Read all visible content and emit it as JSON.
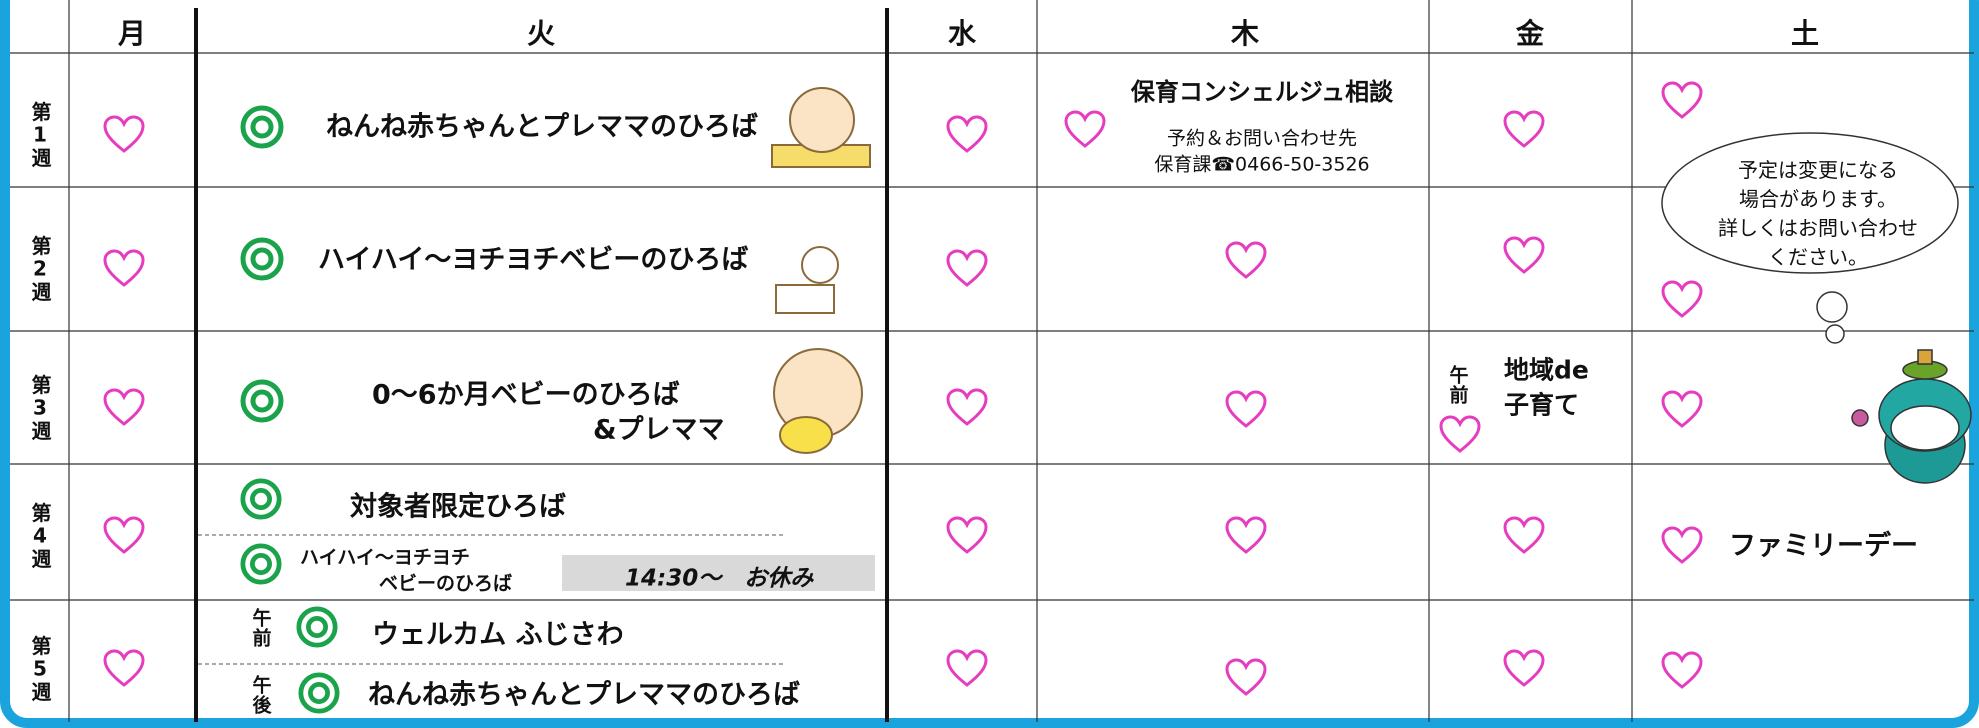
{
  "header": {
    "days": [
      "月",
      "火",
      "水",
      "木",
      "金",
      "土"
    ]
  },
  "weeks": [
    "第1週",
    "第2週",
    "第3週",
    "第4週",
    "第5週"
  ],
  "tue": {
    "w1": "ねんね赤ちゃんとプレママのひろば",
    "w2": "ハイハイ～ヨチヨチベビーのひろば",
    "w3": [
      "0～6か月ベビーのひろば",
      "&プレママ"
    ],
    "w4": {
      "title": "対象者限定ひろば",
      "sub": [
        "ハイハイ～ヨチヨチ",
        "ベビーのひろば"
      ],
      "note": "14:30～　お休み"
    },
    "w5": {
      "am_label": "午前",
      "am": "ウェルカム ふじさわ",
      "pm_label": "午後",
      "pm": "ねんね赤ちゃんとプレママのひろば"
    }
  },
  "thu": {
    "w1": [
      "保育コンシェルジュ相談",
      "予約＆お問い合わせ先",
      "保育課☎0466-50-3526"
    ]
  },
  "fri": {
    "w3": {
      "label": "午前",
      "lines": [
        "地域de",
        "子育て"
      ]
    }
  },
  "sat": {
    "notice": [
      "予定は変更になる",
      "場合があります。",
      "詳しくはお問い合わせ",
      "ください。"
    ],
    "w4": "ファミリーデー"
  }
}
